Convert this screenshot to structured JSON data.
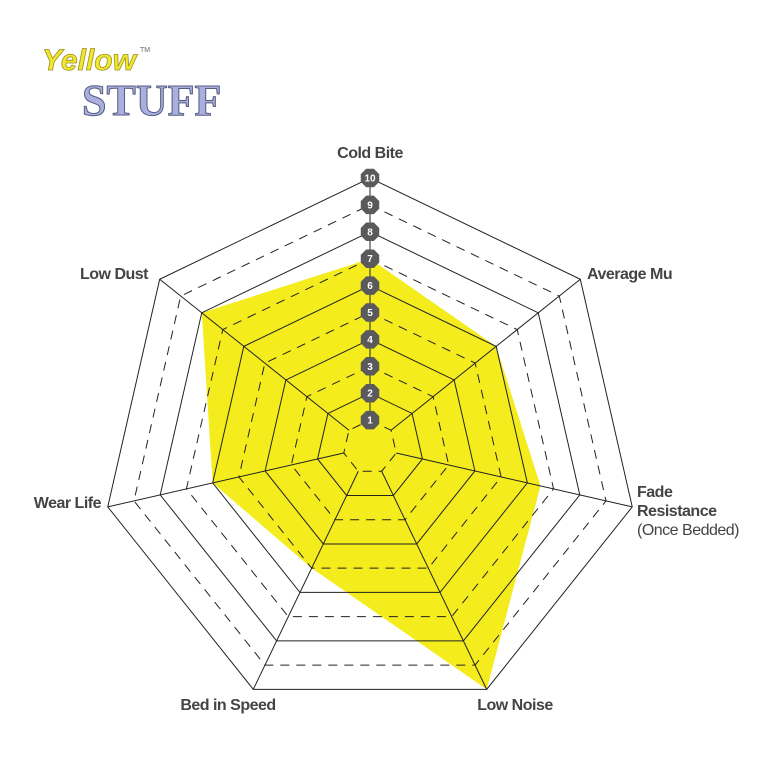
{
  "logo": {
    "line1": "Yellow",
    "line2": "STUFF",
    "tm": "TM"
  },
  "chart_data": {
    "type": "radar",
    "axes": [
      "Cold Bite",
      "Average Mu",
      "Fade Resistance (Once Bedded)",
      "Low Noise",
      "Bed in Speed",
      "Wear Life",
      "Low Dust"
    ],
    "axis_labels": [
      {
        "main": "Cold Bite"
      },
      {
        "main": "Average Mu"
      },
      {
        "main": "Fade",
        "line2": "Resistance",
        "sub": "(Once Bedded)"
      },
      {
        "main": "Low Noise"
      },
      {
        "main": "Bed in Speed"
      },
      {
        "main": "Wear Life"
      },
      {
        "main": "Low Dust"
      }
    ],
    "values": [
      7,
      6,
      6.5,
      10,
      5,
      6,
      8
    ],
    "range": [
      0,
      10
    ],
    "scale_ticks": [
      "1",
      "2",
      "3",
      "4",
      "5",
      "6",
      "7",
      "8",
      "9",
      "10"
    ],
    "fill_color": "#f4ec1c",
    "grid": true
  }
}
